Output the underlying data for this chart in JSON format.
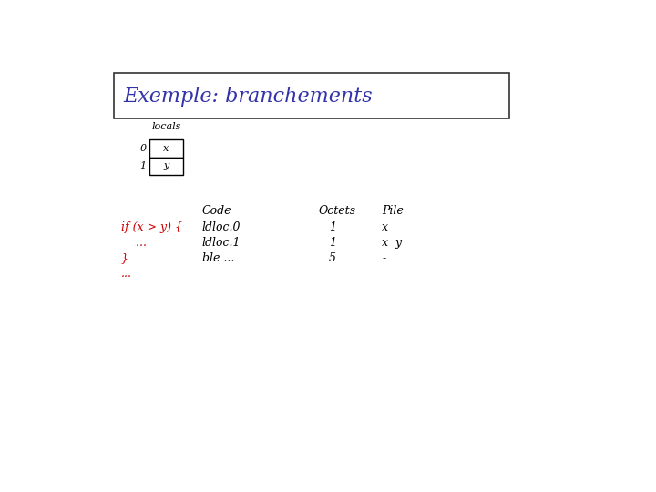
{
  "title": "Exemple: branchements",
  "title_color": "#3333aa",
  "title_fontsize": 16,
  "title_style": "italic",
  "title_font": "serif",
  "bg_color": "#ffffff",
  "locals_label": "locals",
  "locals_rows": [
    [
      "0",
      "x"
    ],
    [
      "1",
      "y"
    ]
  ],
  "col_headers": [
    "Code",
    "Octets",
    "Pile"
  ],
  "code_rows": [
    {
      "code": "if (x > y) {",
      "instr": "ldloc.0",
      "octets": "1",
      "pile": "x",
      "code_color": "#cc0000"
    },
    {
      "code": "    ...",
      "instr": "ldloc.1",
      "octets": "1",
      "pile": "x  y",
      "code_color": "#cc0000"
    },
    {
      "code": "}",
      "instr": "ble ...",
      "octets": "5",
      "pile": "-",
      "code_color": "#cc0000"
    },
    {
      "code": "...",
      "instr": "",
      "octets": "",
      "pile": "",
      "code_color": "#cc0000"
    }
  ],
  "font_size_title": 16,
  "font_size_table": 9,
  "font_size_locals": 8
}
